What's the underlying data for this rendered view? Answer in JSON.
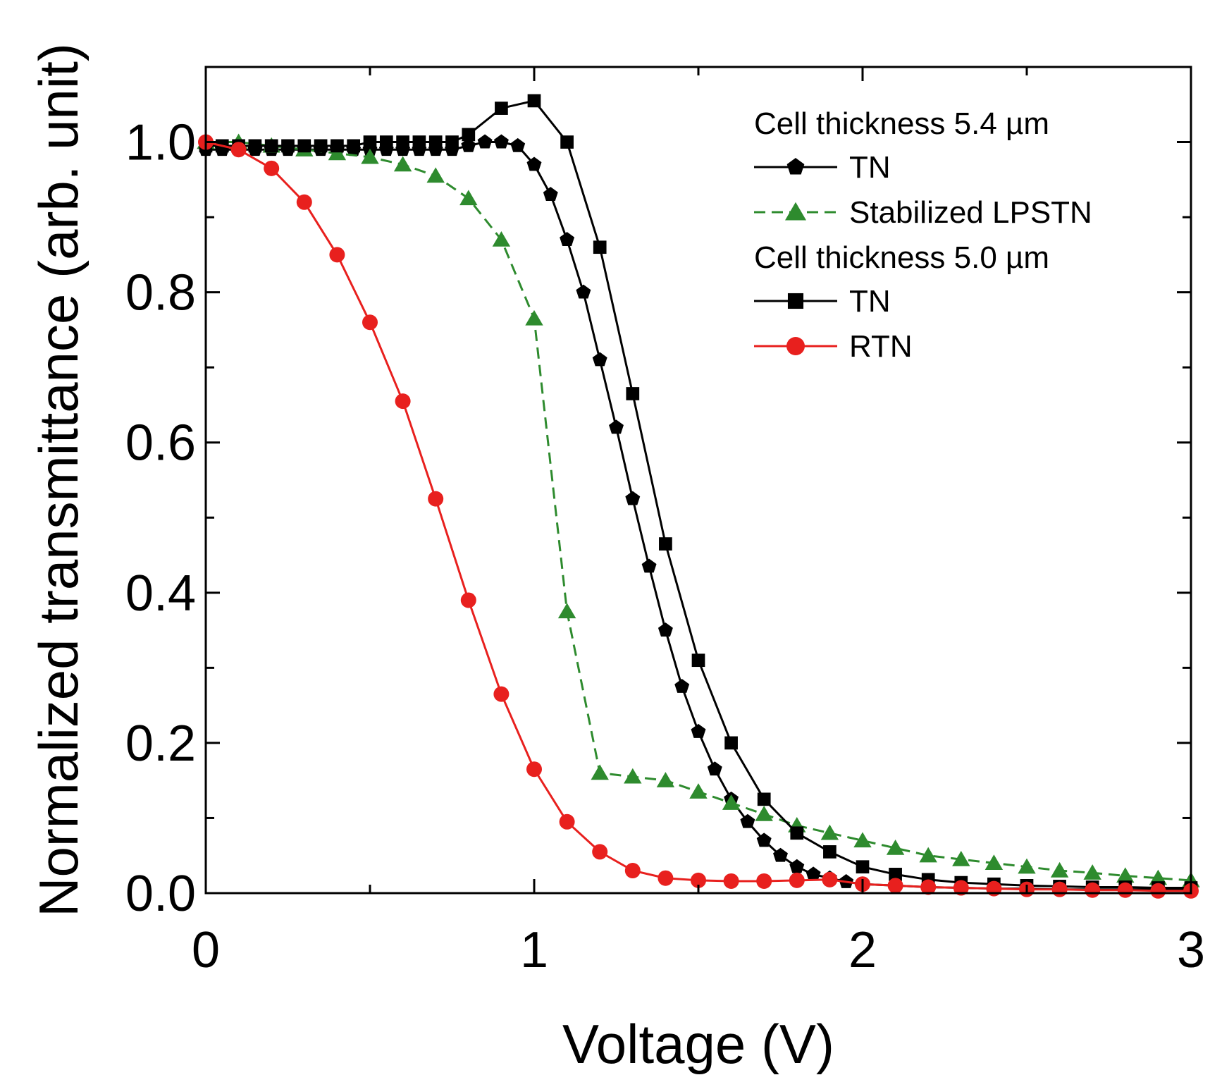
{
  "chart_data": {
    "type": "line",
    "title": "",
    "xlabel": "Voltage (V)",
    "ylabel": "Normalized transmittance (arb. unit)",
    "xlim": [
      0,
      3
    ],
    "ylim": [
      0,
      1.1
    ],
    "xticks": [
      0,
      1,
      2,
      3
    ],
    "xtick_labels": [
      "0",
      "1",
      "2",
      "3"
    ],
    "yticks": [
      0,
      0.2,
      0.4,
      0.6,
      0.8,
      1.0
    ],
    "ytick_labels": [
      "0.0",
      "0.2",
      "0.4",
      "0.6",
      "0.8",
      "1.0"
    ],
    "grid": false,
    "legend_position": "top-right",
    "legend_groups": [
      {
        "heading": "Cell thickness 5.4 µm",
        "series": [
          "TN (5.4 µm)",
          "Stabilized LPSTN"
        ]
      },
      {
        "heading": "Cell thickness 5.0 µm",
        "series": [
          "TN (5.0 µm)",
          "RTN"
        ]
      }
    ],
    "series": [
      {
        "name": "TN (5.4 µm)",
        "legend_label": "TN",
        "color": "#000000",
        "marker": "pentagon",
        "dash": "solid",
        "points": [
          [
            0,
            0.99
          ],
          [
            0.05,
            0.99
          ],
          [
            0.1,
            0.99
          ],
          [
            0.15,
            0.99
          ],
          [
            0.2,
            0.99
          ],
          [
            0.25,
            0.99
          ],
          [
            0.3,
            0.99
          ],
          [
            0.35,
            0.99
          ],
          [
            0.4,
            0.99
          ],
          [
            0.45,
            0.99
          ],
          [
            0.5,
            0.99
          ],
          [
            0.55,
            0.99
          ],
          [
            0.6,
            0.99
          ],
          [
            0.65,
            0.99
          ],
          [
            0.7,
            0.99
          ],
          [
            0.75,
            0.99
          ],
          [
            0.8,
            0.995
          ],
          [
            0.85,
            1.0
          ],
          [
            0.9,
            1.0
          ],
          [
            0.95,
            0.995
          ],
          [
            1.0,
            0.97
          ],
          [
            1.05,
            0.93
          ],
          [
            1.1,
            0.87
          ],
          [
            1.15,
            0.8
          ],
          [
            1.2,
            0.71
          ],
          [
            1.25,
            0.62
          ],
          [
            1.3,
            0.525
          ],
          [
            1.35,
            0.435
          ],
          [
            1.4,
            0.35
          ],
          [
            1.45,
            0.275
          ],
          [
            1.5,
            0.215
          ],
          [
            1.55,
            0.165
          ],
          [
            1.6,
            0.125
          ],
          [
            1.65,
            0.095
          ],
          [
            1.7,
            0.07
          ],
          [
            1.75,
            0.05
          ],
          [
            1.8,
            0.035
          ],
          [
            1.85,
            0.025
          ],
          [
            1.9,
            0.02
          ],
          [
            1.95,
            0.015
          ],
          [
            2.0,
            0.012
          ],
          [
            2.1,
            0.01
          ],
          [
            2.2,
            0.008
          ],
          [
            2.3,
            0.007
          ],
          [
            2.4,
            0.006
          ],
          [
            2.5,
            0.006
          ],
          [
            2.6,
            0.005
          ],
          [
            2.7,
            0.005
          ],
          [
            2.8,
            0.005
          ],
          [
            2.9,
            0.005
          ],
          [
            3.0,
            0.005
          ]
        ]
      },
      {
        "name": "Stabilized LPSTN",
        "legend_label": "Stabilized LPSTN",
        "color": "#2e8b2e",
        "marker": "triangle",
        "dash": "dashed",
        "points": [
          [
            0,
            1.0
          ],
          [
            0.1,
            1.0
          ],
          [
            0.2,
            0.995
          ],
          [
            0.3,
            0.99
          ],
          [
            0.4,
            0.985
          ],
          [
            0.5,
            0.98
          ],
          [
            0.6,
            0.97
          ],
          [
            0.7,
            0.955
          ],
          [
            0.8,
            0.925
          ],
          [
            0.9,
            0.87
          ],
          [
            1.0,
            0.765
          ],
          [
            1.1,
            0.375
          ],
          [
            1.2,
            0.16
          ],
          [
            1.3,
            0.155
          ],
          [
            1.4,
            0.15
          ],
          [
            1.5,
            0.135
          ],
          [
            1.6,
            0.12
          ],
          [
            1.7,
            0.105
          ],
          [
            1.8,
            0.09
          ],
          [
            1.9,
            0.08
          ],
          [
            2.0,
            0.07
          ],
          [
            2.1,
            0.06
          ],
          [
            2.2,
            0.05
          ],
          [
            2.3,
            0.045
          ],
          [
            2.4,
            0.04
          ],
          [
            2.5,
            0.035
          ],
          [
            2.6,
            0.03
          ],
          [
            2.7,
            0.027
          ],
          [
            2.8,
            0.023
          ],
          [
            2.9,
            0.02
          ],
          [
            3.0,
            0.017
          ]
        ]
      },
      {
        "name": "TN (5.0 µm)",
        "legend_label": "TN",
        "color": "#000000",
        "marker": "square",
        "dash": "solid",
        "points": [
          [
            0,
            0.995
          ],
          [
            0.05,
            0.995
          ],
          [
            0.1,
            0.995
          ],
          [
            0.15,
            0.995
          ],
          [
            0.2,
            0.995
          ],
          [
            0.25,
            0.995
          ],
          [
            0.3,
            0.995
          ],
          [
            0.35,
            0.995
          ],
          [
            0.4,
            0.995
          ],
          [
            0.45,
            0.995
          ],
          [
            0.5,
            1.0
          ],
          [
            0.55,
            1.0
          ],
          [
            0.6,
            1.0
          ],
          [
            0.65,
            1.0
          ],
          [
            0.7,
            1.0
          ],
          [
            0.75,
            1.0
          ],
          [
            0.8,
            1.01
          ],
          [
            0.9,
            1.045
          ],
          [
            1.0,
            1.055
          ],
          [
            1.1,
            1.0
          ],
          [
            1.2,
            0.86
          ],
          [
            1.3,
            0.665
          ],
          [
            1.4,
            0.465
          ],
          [
            1.5,
            0.31
          ],
          [
            1.6,
            0.2
          ],
          [
            1.7,
            0.125
          ],
          [
            1.8,
            0.08
          ],
          [
            1.9,
            0.055
          ],
          [
            2.0,
            0.035
          ],
          [
            2.1,
            0.025
          ],
          [
            2.2,
            0.018
          ],
          [
            2.3,
            0.014
          ],
          [
            2.4,
            0.012
          ],
          [
            2.5,
            0.01
          ],
          [
            2.6,
            0.009
          ],
          [
            2.7,
            0.008
          ],
          [
            2.8,
            0.008
          ],
          [
            2.9,
            0.007
          ],
          [
            3.0,
            0.007
          ]
        ]
      },
      {
        "name": "RTN",
        "legend_label": "RTN",
        "color": "#e8201e",
        "marker": "circle",
        "dash": "solid",
        "points": [
          [
            0,
            1.0
          ],
          [
            0.1,
            0.99
          ],
          [
            0.2,
            0.965
          ],
          [
            0.3,
            0.92
          ],
          [
            0.4,
            0.85
          ],
          [
            0.5,
            0.76
          ],
          [
            0.6,
            0.655
          ],
          [
            0.7,
            0.525
          ],
          [
            0.8,
            0.39
          ],
          [
            0.9,
            0.265
          ],
          [
            1.0,
            0.165
          ],
          [
            1.1,
            0.095
          ],
          [
            1.2,
            0.055
          ],
          [
            1.3,
            0.03
          ],
          [
            1.4,
            0.02
          ],
          [
            1.5,
            0.017
          ],
          [
            1.6,
            0.016
          ],
          [
            1.7,
            0.016
          ],
          [
            1.8,
            0.017
          ],
          [
            1.9,
            0.018
          ],
          [
            2.0,
            0.012
          ],
          [
            2.1,
            0.01
          ],
          [
            2.2,
            0.008
          ],
          [
            2.3,
            0.007
          ],
          [
            2.4,
            0.006
          ],
          [
            2.5,
            0.005
          ],
          [
            2.6,
            0.005
          ],
          [
            2.7,
            0.004
          ],
          [
            2.8,
            0.004
          ],
          [
            2.9,
            0.003
          ],
          [
            3.0,
            0.003
          ]
        ]
      }
    ]
  }
}
